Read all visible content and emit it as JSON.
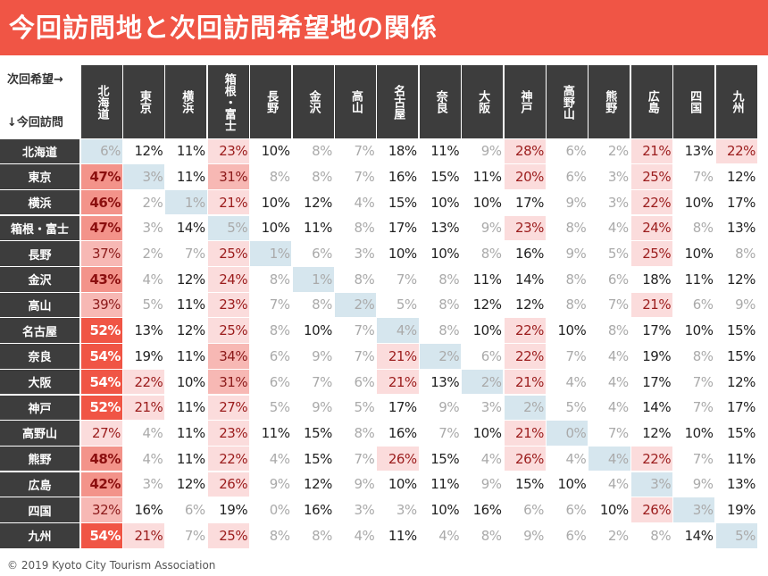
{
  "title": "今回訪問地と次回訪問希望地の関係",
  "corner": {
    "next": "次回希望→",
    "current": "↓今回訪問"
  },
  "footer": "© 2019 Kyoto City Tourism Association",
  "colors": {
    "accent": "#f05545",
    "header_bg": "#3d3d3d",
    "diagonal": "#d6e6ee",
    "level20": "#fbdcdc",
    "level30": "#f7b8b4",
    "level40": "#f3938a",
    "level50": "#f05545"
  },
  "chart_data": {
    "type": "heatmap",
    "title": "今回訪問地と次回訪問希望地の関係",
    "xlabel": "次回希望→",
    "ylabel": "↓今回訪問",
    "unit": "%",
    "columns": [
      "北海道",
      "東京",
      "横浜",
      "箱根・富士",
      "長野",
      "金沢",
      "高山",
      "名古屋",
      "奈良",
      "大阪",
      "神戸",
      "高野山",
      "熊野",
      "広島",
      "四国",
      "九州"
    ],
    "rows": [
      "北海道",
      "東京",
      "横浜",
      "箱根・富士",
      "長野",
      "金沢",
      "高山",
      "名古屋",
      "奈良",
      "大阪",
      "神戸",
      "高野山",
      "熊野",
      "広島",
      "四国",
      "九州"
    ],
    "values": [
      [
        6,
        12,
        11,
        23,
        10,
        8,
        7,
        18,
        11,
        9,
        28,
        6,
        2,
        21,
        13,
        22
      ],
      [
        47,
        3,
        11,
        31,
        8,
        8,
        7,
        16,
        15,
        11,
        20,
        6,
        3,
        25,
        7,
        12
      ],
      [
        46,
        2,
        1,
        21,
        10,
        12,
        4,
        15,
        10,
        10,
        17,
        9,
        3,
        22,
        10,
        17
      ],
      [
        47,
        3,
        14,
        5,
        10,
        11,
        8,
        17,
        13,
        9,
        23,
        8,
        4,
        24,
        8,
        13
      ],
      [
        37,
        2,
        7,
        25,
        1,
        6,
        3,
        10,
        10,
        8,
        16,
        9,
        5,
        25,
        10,
        8
      ],
      [
        43,
        4,
        12,
        24,
        8,
        1,
        8,
        7,
        8,
        11,
        14,
        8,
        6,
        18,
        11,
        12
      ],
      [
        39,
        5,
        11,
        23,
        7,
        8,
        2,
        5,
        8,
        12,
        12,
        8,
        7,
        21,
        6,
        9
      ],
      [
        52,
        13,
        12,
        25,
        8,
        10,
        7,
        4,
        8,
        10,
        22,
        10,
        8,
        17,
        10,
        15
      ],
      [
        54,
        19,
        11,
        34,
        6,
        9,
        7,
        21,
        2,
        6,
        22,
        7,
        4,
        19,
        8,
        15
      ],
      [
        54,
        22,
        10,
        31,
        6,
        7,
        6,
        21,
        13,
        2,
        21,
        4,
        4,
        17,
        7,
        12
      ],
      [
        52,
        21,
        11,
        27,
        5,
        9,
        5,
        17,
        9,
        3,
        2,
        5,
        4,
        14,
        7,
        17
      ],
      [
        27,
        4,
        11,
        23,
        11,
        15,
        8,
        16,
        7,
        10,
        21,
        0,
        7,
        12,
        10,
        15
      ],
      [
        48,
        4,
        11,
        22,
        4,
        15,
        7,
        26,
        15,
        4,
        26,
        4,
        4,
        22,
        7,
        11
      ],
      [
        42,
        3,
        12,
        26,
        9,
        12,
        9,
        10,
        11,
        9,
        15,
        10,
        4,
        3,
        9,
        13
      ],
      [
        32,
        16,
        6,
        19,
        0,
        16,
        3,
        3,
        10,
        16,
        6,
        6,
        10,
        26,
        3,
        19
      ],
      [
        54,
        21,
        7,
        25,
        8,
        8,
        4,
        11,
        4,
        8,
        9,
        6,
        2,
        8,
        14,
        5
      ]
    ]
  }
}
